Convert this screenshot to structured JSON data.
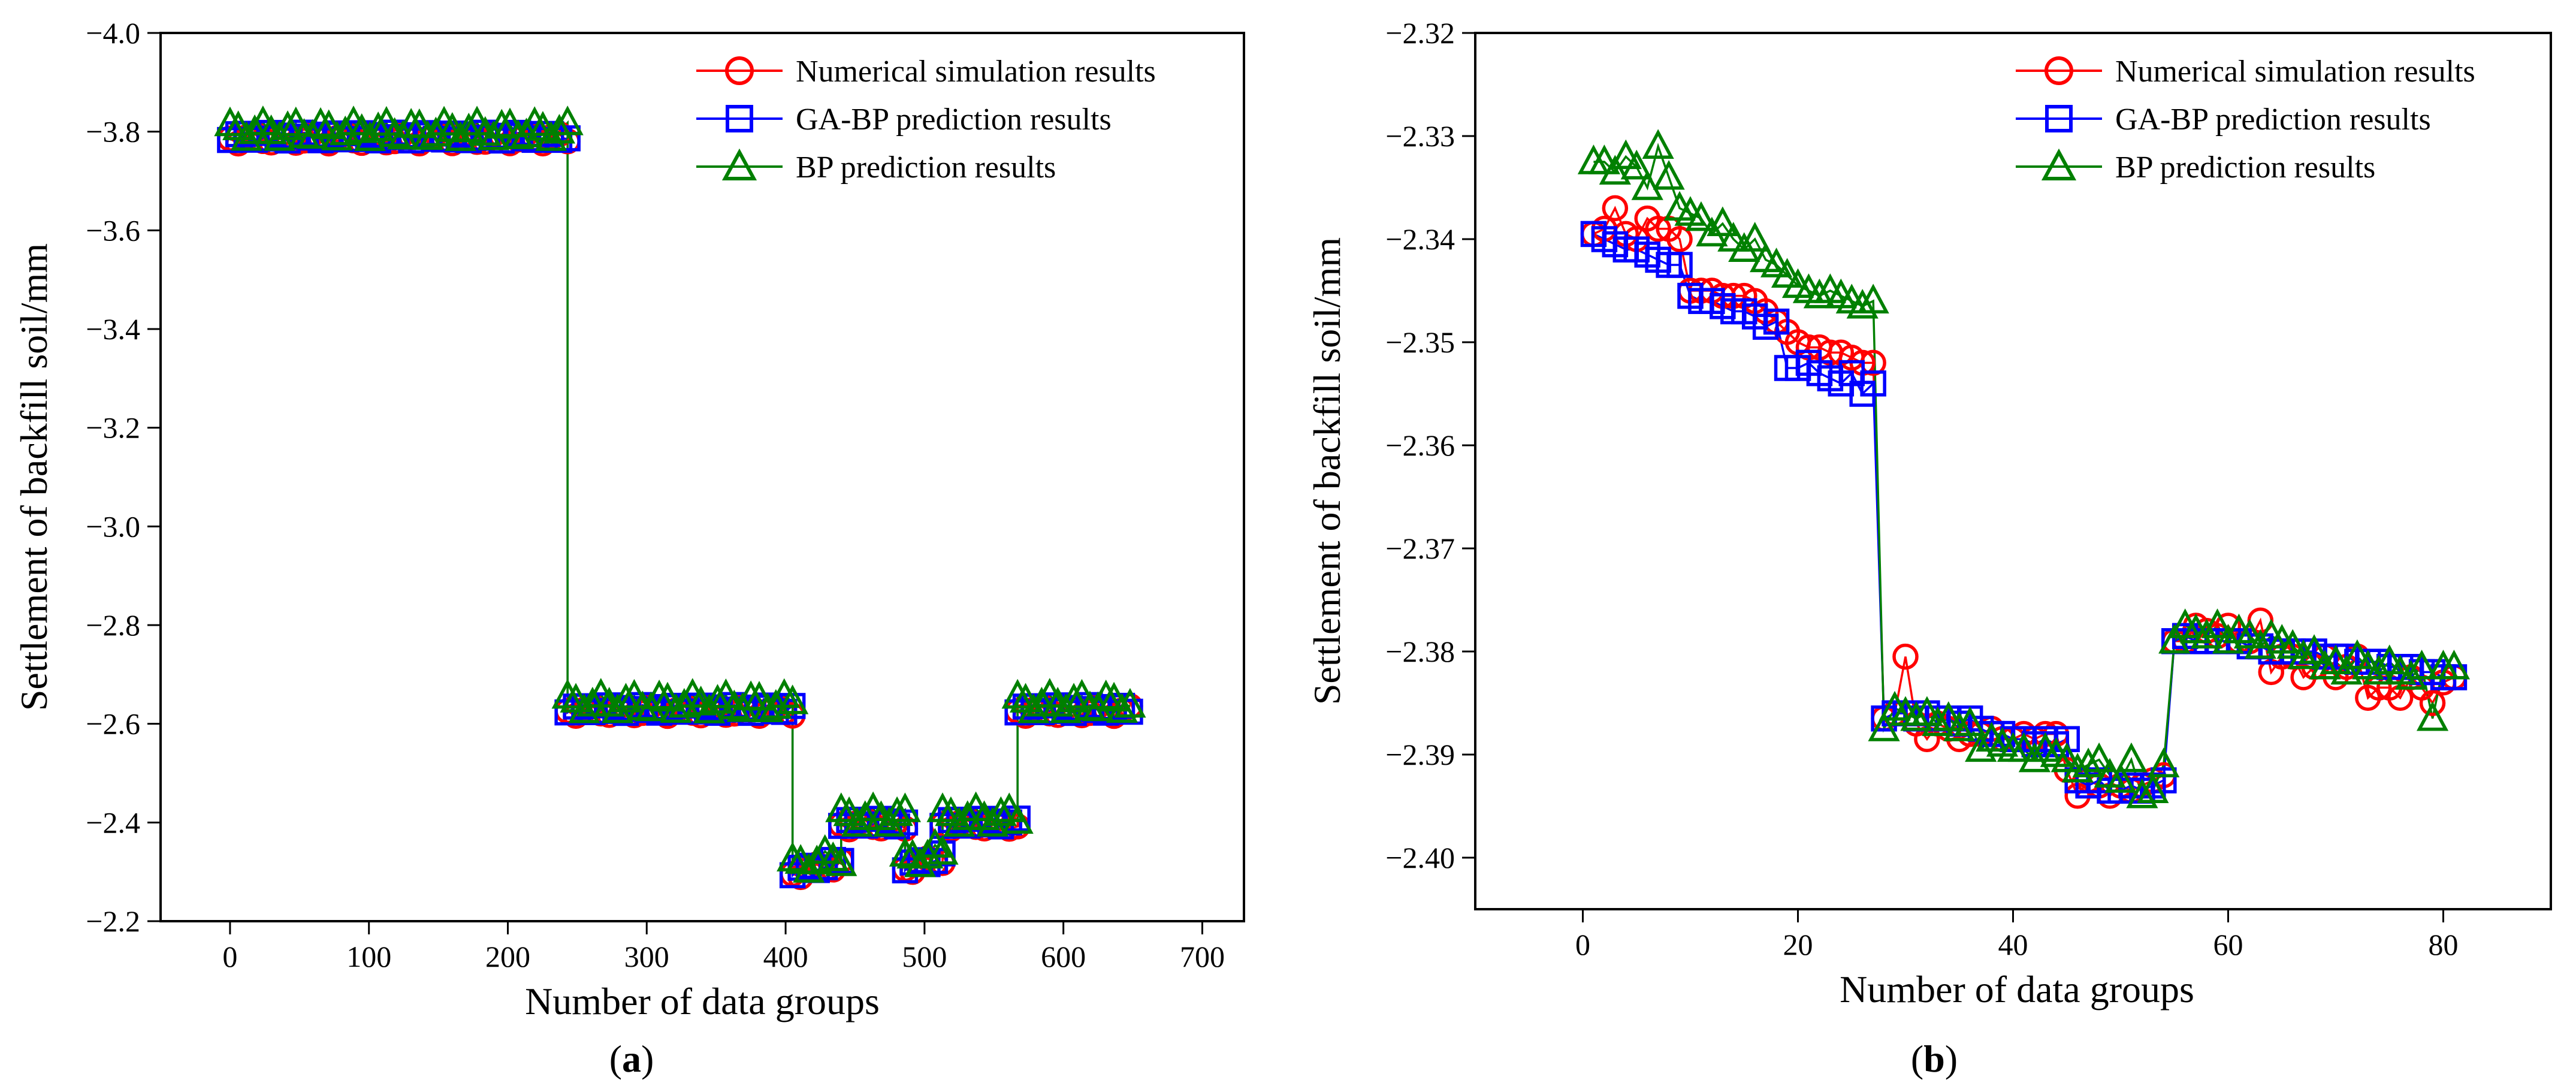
{
  "legend": {
    "numerical": "Numerical simulation results",
    "gabp": "GA-BP prediction results",
    "bp": "BP prediction results"
  },
  "colors": {
    "numerical": "#ff0000",
    "gabp": "#0000ff",
    "bp": "#008000"
  },
  "chart_data": [
    {
      "type": "line",
      "panel_label_prefix": "(",
      "panel_label": "a",
      "panel_label_suffix": ")",
      "xlabel": "Number of data groups",
      "ylabel": "Settlement of backfill soil/mm",
      "xlim": [
        -50,
        730
      ],
      "ylim": [
        -2.2,
        -4.0
      ],
      "xticks": [
        0,
        100,
        200,
        300,
        400,
        500,
        600,
        700
      ],
      "xtick_labels": [
        "0",
        "100",
        "200",
        "300",
        "400",
        "500",
        "600",
        "700"
      ],
      "yticks": [
        -2.2,
        -2.4,
        -2.6,
        -2.8,
        -3.0,
        -3.2,
        -3.4,
        -3.6,
        -3.8,
        -4.0
      ],
      "ytick_labels": [
        "−2.2",
        "−2.4",
        "−2.6",
        "−2.8",
        "−3.0",
        "−3.2",
        "−3.4",
        "−3.6",
        "−3.8",
        "−4.0"
      ],
      "segments": [
        {
          "x_range": [
            0,
            243
          ],
          "level": -3.79,
          "marker_spacing": 6
        },
        {
          "x_range": [
            243,
            405
          ],
          "level": -2.63,
          "marker_spacing": 6
        },
        {
          "x_range": [
            405,
            440
          ],
          "level": -2.3,
          "slope_to": -2.32,
          "marker_spacing": 6
        },
        {
          "x_range": [
            440,
            486
          ],
          "level": -2.4,
          "marker_spacing": 6
        },
        {
          "x_range": [
            486,
            513
          ],
          "level": -2.31,
          "slope_to": -2.33,
          "marker_spacing": 6
        },
        {
          "x_range": [
            513,
            567
          ],
          "level": -2.4,
          "marker_spacing": 6
        },
        {
          "x_range": [
            567,
            648
          ],
          "level": -2.63,
          "marker_spacing": 6
        }
      ]
    },
    {
      "type": "line",
      "panel_label_prefix": "(",
      "panel_label": "b",
      "panel_label_suffix": ")",
      "xlabel": "Number of data groups",
      "ylabel": "Settlement of backfill soil/mm",
      "xlim": [
        -10,
        90
      ],
      "ylim": [
        -2.405,
        -2.32
      ],
      "xticks": [
        0,
        20,
        40,
        60,
        80
      ],
      "xtick_labels": [
        "0",
        "20",
        "40",
        "60",
        "80"
      ],
      "yticks": [
        -2.4,
        -2.39,
        -2.38,
        -2.37,
        -2.36,
        -2.35,
        -2.34,
        -2.33,
        -2.32
      ],
      "ytick_labels": [
        "−2.40",
        "−2.39",
        "−2.38",
        "−2.37",
        "−2.36",
        "−2.35",
        "−2.34",
        "−2.33",
        "−2.32"
      ],
      "series": [
        {
          "name": "Numerical simulation results",
          "x": [
            1,
            2,
            3,
            4,
            5,
            6,
            7,
            8,
            9,
            10,
            11,
            12,
            13,
            14,
            15,
            16,
            17,
            18,
            19,
            20,
            21,
            22,
            23,
            24,
            25,
            26,
            27,
            28,
            29,
            30,
            31,
            32,
            33,
            34,
            35,
            36,
            37,
            38,
            39,
            40,
            41,
            42,
            43,
            44,
            45,
            46,
            47,
            48,
            49,
            50,
            51,
            52,
            53,
            54,
            55,
            56,
            57,
            58,
            59,
            60,
            61,
            62,
            63,
            64,
            65,
            66,
            67,
            68,
            69,
            70,
            71,
            72,
            73,
            74,
            75,
            76,
            77,
            78,
            79,
            80,
            81
          ],
          "values": [
            -2.3395,
            -2.339,
            -2.337,
            -2.3395,
            -2.34,
            -2.338,
            -2.339,
            -2.339,
            -2.34,
            -2.345,
            -2.345,
            -2.345,
            -2.3455,
            -2.3455,
            -2.3455,
            -2.346,
            -2.347,
            -2.348,
            -2.349,
            -2.35,
            -2.3505,
            -2.3505,
            -2.351,
            -2.351,
            -2.3515,
            -2.352,
            -2.352,
            -2.3865,
            -2.386,
            -2.3805,
            -2.387,
            -2.3885,
            -2.387,
            -2.3875,
            -2.3885,
            -2.388,
            -2.388,
            -2.3875,
            -2.3885,
            -2.3885,
            -2.388,
            -2.3885,
            -2.388,
            -2.388,
            -2.3915,
            -2.394,
            -2.3925,
            -2.393,
            -2.394,
            -2.393,
            -2.3935,
            -2.393,
            -2.3925,
            -2.392,
            -2.379,
            -2.379,
            -2.3775,
            -2.378,
            -2.3785,
            -2.3775,
            -2.379,
            -2.379,
            -2.377,
            -2.382,
            -2.3805,
            -2.3805,
            -2.3825,
            -2.3815,
            -2.3805,
            -2.3825,
            -2.3815,
            -2.3805,
            -2.3845,
            -2.3835,
            -2.3835,
            -2.3845,
            -2.3825,
            -2.3835,
            -2.385,
            -2.383,
            -2.3825
          ]
        },
        {
          "name": "GA-BP prediction results",
          "x": [
            1,
            2,
            3,
            4,
            5,
            6,
            7,
            8,
            9,
            10,
            11,
            12,
            13,
            14,
            15,
            16,
            17,
            18,
            19,
            20,
            21,
            22,
            23,
            24,
            25,
            26,
            27,
            28,
            29,
            30,
            31,
            32,
            33,
            34,
            35,
            36,
            37,
            38,
            39,
            40,
            41,
            42,
            43,
            44,
            45,
            46,
            47,
            48,
            49,
            50,
            51,
            52,
            53,
            54,
            55,
            56,
            57,
            58,
            59,
            60,
            61,
            62,
            63,
            64,
            65,
            66,
            67,
            68,
            69,
            70,
            71,
            72,
            73,
            74,
            75,
            76,
            77,
            78,
            79,
            80,
            81
          ],
          "values": [
            -2.3395,
            -2.34,
            -2.3405,
            -2.341,
            -2.341,
            -2.3415,
            -2.342,
            -2.3425,
            -2.3425,
            -2.3455,
            -2.346,
            -2.346,
            -2.3465,
            -2.347,
            -2.347,
            -2.3475,
            -2.3485,
            -2.348,
            -2.3525,
            -2.3525,
            -2.352,
            -2.353,
            -2.3535,
            -2.354,
            -2.353,
            -2.355,
            -2.354,
            -2.3865,
            -2.386,
            -2.386,
            -2.3865,
            -2.386,
            -2.3865,
            -2.3865,
            -2.387,
            -2.3865,
            -2.3875,
            -2.388,
            -2.388,
            -2.3885,
            -2.3885,
            -2.389,
            -2.3885,
            -2.389,
            -2.3885,
            -2.3925,
            -2.393,
            -2.3925,
            -2.3935,
            -2.3935,
            -2.393,
            -2.3935,
            -2.393,
            -2.3925,
            -2.379,
            -2.3785,
            -2.379,
            -2.379,
            -2.379,
            -2.379,
            -2.379,
            -2.3795,
            -2.3795,
            -2.38,
            -2.38,
            -2.38,
            -2.38,
            -2.38,
            -2.3805,
            -2.3805,
            -2.3805,
            -2.381,
            -2.381,
            -2.381,
            -2.3815,
            -2.3815,
            -2.3815,
            -2.382,
            -2.382,
            -2.3825,
            -2.3825
          ]
        },
        {
          "name": "BP prediction results",
          "x": [
            1,
            2,
            3,
            4,
            5,
            6,
            7,
            8,
            9,
            10,
            11,
            12,
            13,
            14,
            15,
            16,
            17,
            18,
            19,
            20,
            21,
            22,
            23,
            24,
            25,
            26,
            27,
            28,
            29,
            30,
            31,
            32,
            33,
            34,
            35,
            36,
            37,
            38,
            39,
            40,
            41,
            42,
            43,
            44,
            45,
            46,
            47,
            48,
            49,
            50,
            51,
            52,
            53,
            54,
            55,
            56,
            57,
            58,
            59,
            60,
            61,
            62,
            63,
            64,
            65,
            66,
            67,
            68,
            69,
            70,
            71,
            72,
            73,
            74,
            75,
            76,
            77,
            78,
            79,
            80,
            81
          ],
          "values": [
            -2.3325,
            -2.3325,
            -2.3335,
            -2.332,
            -2.333,
            -2.335,
            -2.331,
            -2.334,
            -2.337,
            -2.3375,
            -2.338,
            -2.3395,
            -2.3385,
            -2.34,
            -2.341,
            -2.34,
            -2.342,
            -2.3425,
            -2.3435,
            -2.3445,
            -2.345,
            -2.3455,
            -2.345,
            -2.3455,
            -2.346,
            -2.3465,
            -2.346,
            -2.3875,
            -2.3855,
            -2.386,
            -2.3865,
            -2.386,
            -2.387,
            -2.3865,
            -2.3875,
            -2.387,
            -2.3895,
            -2.3885,
            -2.389,
            -2.3895,
            -2.3895,
            -2.3905,
            -2.3895,
            -2.39,
            -2.3905,
            -2.3915,
            -2.391,
            -2.3905,
            -2.392,
            -2.3925,
            -2.3905,
            -2.394,
            -2.3935,
            -2.391,
            -2.379,
            -2.3775,
            -2.378,
            -2.3785,
            -2.3775,
            -2.379,
            -2.378,
            -2.3785,
            -2.3795,
            -2.3785,
            -2.379,
            -2.3795,
            -2.3805,
            -2.38,
            -2.3815,
            -2.381,
            -2.382,
            -2.3805,
            -2.3815,
            -2.382,
            -2.381,
            -2.382,
            -2.3825,
            -2.3815,
            -2.3865,
            -2.3815,
            -2.3815
          ]
        }
      ]
    }
  ]
}
